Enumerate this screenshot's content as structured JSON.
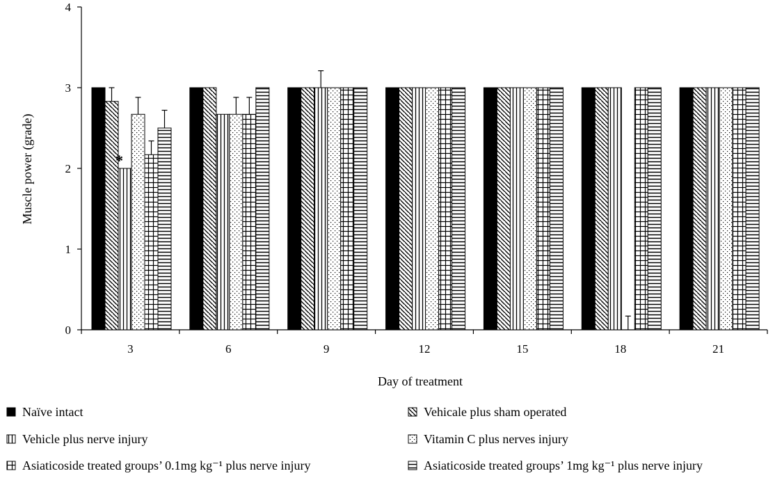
{
  "chart_data": {
    "type": "bar",
    "title": "",
    "xlabel": "Day of treatment",
    "ylabel": "Muscle power (grade)",
    "ylim": [
      0,
      4
    ],
    "yticks": [
      "0",
      "1",
      "2",
      "3",
      "4"
    ],
    "grid": false,
    "legend_position": "bottom",
    "categories": [
      "3",
      "6",
      "9",
      "12",
      "15",
      "18",
      "21"
    ],
    "series": [
      {
        "name": "Naïve intact",
        "pattern": "solid",
        "values": [
          3,
          3,
          3,
          3,
          3,
          3,
          3
        ],
        "errors": [
          0,
          0,
          0,
          0,
          0,
          0,
          0
        ]
      },
      {
        "name": "Vehicale plus sham operated",
        "pattern": "diagonal",
        "values": [
          2.83,
          3,
          3,
          3,
          3,
          3,
          3
        ],
        "errors": [
          0.17,
          0,
          0,
          0,
          0,
          0,
          0
        ]
      },
      {
        "name": "Vehicle plus nerve injury",
        "pattern": "vertical",
        "values": [
          2,
          2.67,
          3,
          3,
          3,
          3,
          3
        ],
        "errors": [
          0,
          0,
          0.21,
          0,
          0,
          0,
          0
        ],
        "annotations": [
          {
            "category": "3",
            "text": "*"
          }
        ]
      },
      {
        "name": "Vitamin C plus nerves injury",
        "pattern": "dots",
        "values": [
          2.67,
          2.67,
          3,
          3,
          3,
          0,
          3
        ],
        "errors": [
          0.21,
          0.21,
          0,
          0,
          0,
          0.17,
          0
        ]
      },
      {
        "name": "Asiaticoside treated groups’ 0.1mg kg⁻¹ plus nerve injury",
        "pattern": "grid",
        "values": [
          2.17,
          2.67,
          3,
          3,
          3,
          3,
          3
        ],
        "errors": [
          0.17,
          0.21,
          0,
          0,
          0,
          0,
          0
        ]
      },
      {
        "name": "Asiaticoside treated groups’ 1mg kg⁻¹ plus nerve injury",
        "pattern": "horizontal",
        "values": [
          2.5,
          3,
          3,
          3,
          3,
          3,
          3
        ],
        "errors": [
          0.22,
          0,
          0,
          0,
          0,
          0,
          0
        ]
      }
    ]
  }
}
